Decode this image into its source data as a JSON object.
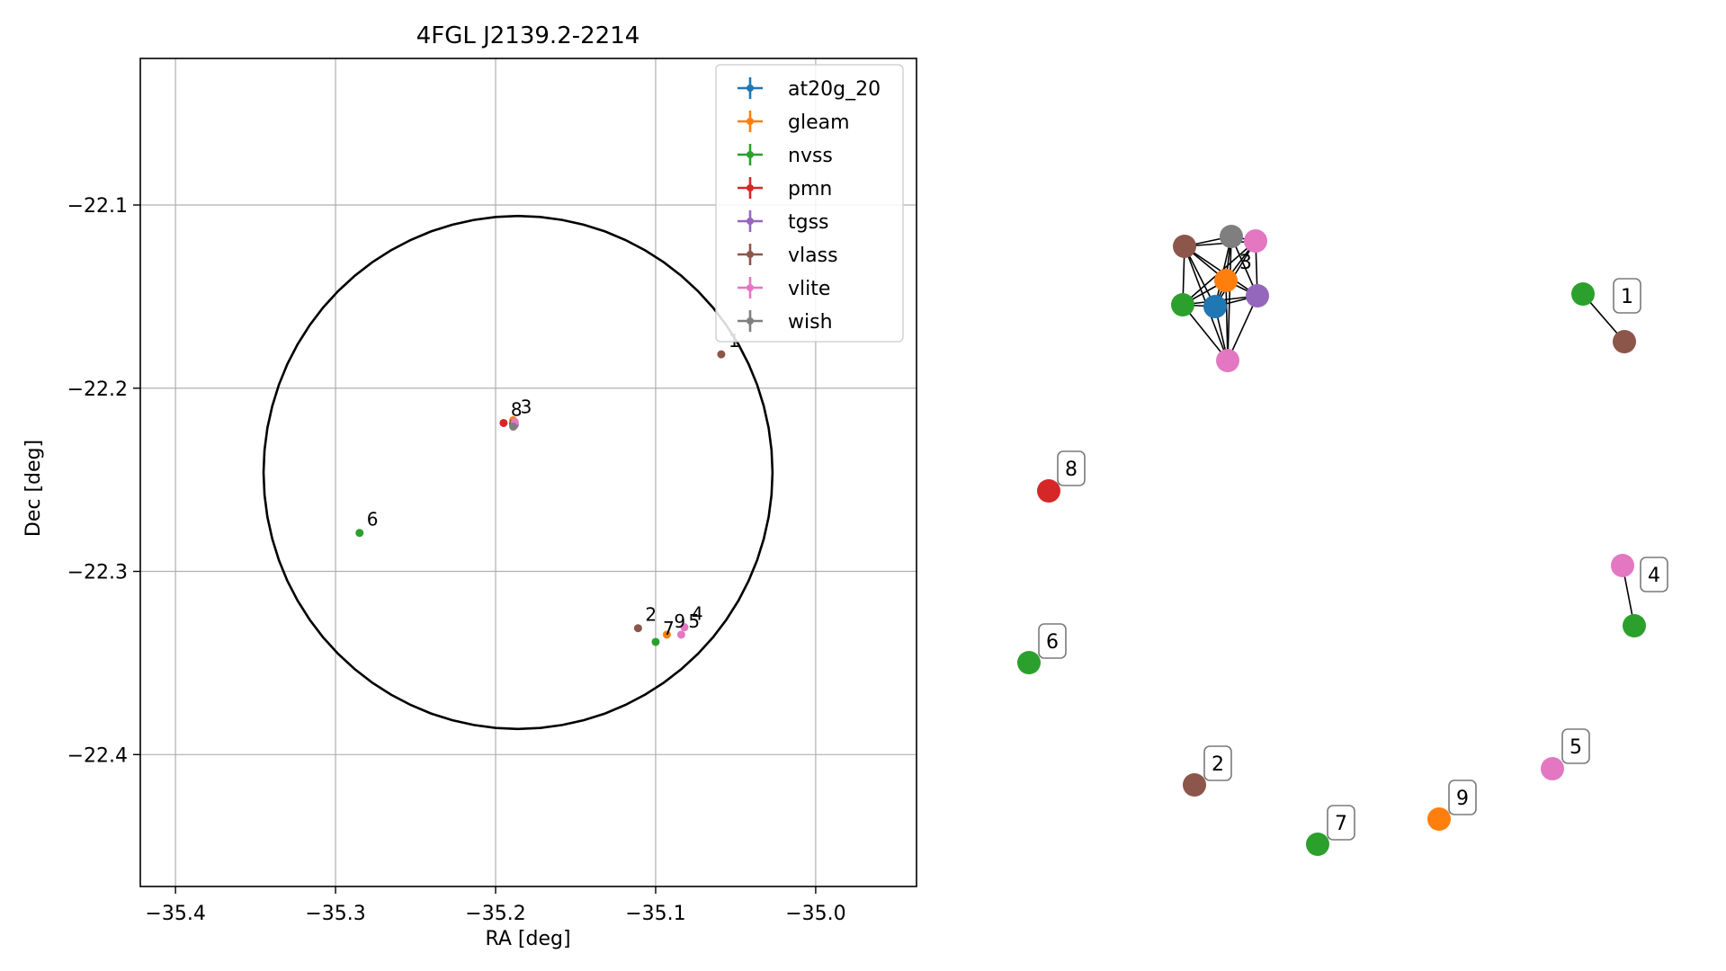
{
  "chart_data": [
    {
      "type": "scatter",
      "title": "4FGL J2139.2-2214",
      "xlabel": "RA [deg]",
      "ylabel": "Dec [deg]",
      "xlim": [
        -35.422,
        -34.937
      ],
      "ylim": [
        -22.472,
        -22.02
      ],
      "x_inverted": false,
      "xticks": [
        -35.4,
        -35.3,
        -35.2,
        -35.1,
        -35.0
      ],
      "xtick_labels": [
        "−35.4",
        "−35.3",
        "−35.2",
        "−35.1",
        "−35.0"
      ],
      "yticks": [
        -22.1,
        -22.2,
        -22.3,
        -22.4
      ],
      "ytick_labels": [
        "−22.1",
        "−22.2",
        "−22.3",
        "−22.4"
      ],
      "grid": true,
      "legend_position": "top-right",
      "ellipse": {
        "center_ra": -35.186,
        "center_dec": -22.246,
        "semi_ra": 0.159,
        "semi_dec": 0.14,
        "color": "#000000"
      },
      "series": [
        {
          "name": "at20g_20",
          "color": "#1f77b4",
          "points": [
            {
              "ra": -35.189,
              "dec": -22.2195,
              "label": ""
            }
          ]
        },
        {
          "name": "gleam",
          "color": "#ff7f0e",
          "points": [
            {
              "ra": -35.189,
              "dec": -22.2175,
              "label": "3"
            },
            {
              "ra": -35.093,
              "dec": -22.3345,
              "label": "9"
            }
          ]
        },
        {
          "name": "nvss",
          "color": "#2ca02c",
          "points": [
            {
              "ra": -35.189,
              "dec": -22.22,
              "label": ""
            },
            {
              "ra": -35.285,
              "dec": -22.279,
              "label": "6"
            },
            {
              "ra": -35.1,
              "dec": -22.3385,
              "label": "7"
            }
          ]
        },
        {
          "name": "pmn",
          "color": "#d62728",
          "points": [
            {
              "ra": -35.195,
              "dec": -22.219,
              "label": "8"
            }
          ]
        },
        {
          "name": "tgss",
          "color": "#9467bd",
          "points": [
            {
              "ra": -35.188,
              "dec": -22.22,
              "label": ""
            }
          ]
        },
        {
          "name": "vlass",
          "color": "#8c564b",
          "points": [
            {
              "ra": -35.189,
              "dec": -22.219,
              "label": ""
            },
            {
              "ra": -35.059,
              "dec": -22.1815,
              "label": "1"
            },
            {
              "ra": -35.111,
              "dec": -22.331,
              "label": "2"
            }
          ]
        },
        {
          "name": "vlite",
          "color": "#e377c2",
          "points": [
            {
              "ra": -35.188,
              "dec": -22.2185,
              "label": ""
            },
            {
              "ra": -35.082,
              "dec": -22.3305,
              "label": "4"
            },
            {
              "ra": -35.084,
              "dec": -22.3345,
              "label": "5"
            }
          ]
        },
        {
          "name": "wish",
          "color": "#7f7f7f",
          "points": [
            {
              "ra": -35.189,
              "dec": -22.221,
              "label": ""
            }
          ]
        }
      ]
    },
    {
      "type": "network",
      "node_labels": [
        "3",
        "1",
        "8",
        "4",
        "6",
        "5",
        "2",
        "9",
        "7"
      ]
    }
  ]
}
